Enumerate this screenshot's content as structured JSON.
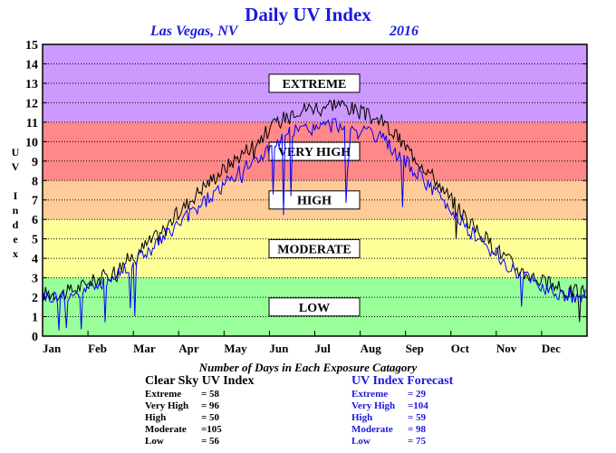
{
  "title": "Daily UV Index",
  "location": "Las Vegas, NV",
  "year": "2016",
  "chart_data": {
    "type": "line",
    "ylabel": "UV Index",
    "ylim": [
      0,
      15
    ],
    "yticks": [
      "0",
      "1",
      "2",
      "3",
      "4",
      "5",
      "6",
      "7",
      "8",
      "9",
      "10",
      "11",
      "12",
      "13",
      "14",
      "15"
    ],
    "x_labels": [
      "Jan",
      "Feb",
      "Mar",
      "Apr",
      "May",
      "Jun",
      "Jul",
      "Aug",
      "Sep",
      "Oct",
      "Nov",
      "Dec"
    ],
    "grid": true,
    "bands": [
      {
        "label": "LOW",
        "from": 0,
        "to": 3,
        "color": "#99ff99"
      },
      {
        "label": "MODERATE",
        "from": 3,
        "to": 6,
        "color": "#ffff99"
      },
      {
        "label": "HIGH",
        "from": 6,
        "to": 8,
        "color": "#ffcc99"
      },
      {
        "label": "VERY HIGH",
        "from": 8,
        "to": 11,
        "color": "#ff8888"
      },
      {
        "label": "EXTREME",
        "from": 11,
        "to": 15,
        "color": "#cc99ff"
      }
    ],
    "series": [
      {
        "color": "#000000",
        "months": [
          "Jan",
          "Feb",
          "Mar",
          "Apr",
          "May",
          "Jun",
          "Jul",
          "Aug",
          "Sep",
          "Oct",
          "Nov",
          "Dec"
        ],
        "values": [
          2.2,
          3.2,
          5.1,
          7.6,
          9.6,
          11.6,
          12.0,
          11.0,
          8.5,
          5.6,
          3.4,
          2.3
        ]
      },
      {
        "color": "#0000ff",
        "months": [
          "Jan",
          "Feb",
          "Mar",
          "Apr",
          "May",
          "Jun",
          "Jul",
          "Aug",
          "Sep",
          "Oct",
          "Nov",
          "Dec"
        ],
        "values": [
          2.0,
          2.9,
          4.7,
          6.8,
          8.7,
          10.5,
          10.9,
          10.1,
          7.8,
          5.2,
          3.1,
          2.1
        ]
      }
    ]
  },
  "stats": {
    "title": "Number of Days in Each Exposure Catagory",
    "clear_sky": {
      "title": "Clear Sky UV Index",
      "rows": [
        {
          "label": "Extreme",
          "value": "= 58"
        },
        {
          "label": "Very High",
          "value": "= 96"
        },
        {
          "label": "High",
          "value": "= 50"
        },
        {
          "label": "Moderate",
          "value": "=105"
        },
        {
          "label": "Low",
          "value": "= 56"
        }
      ]
    },
    "forecast": {
      "title": "UV Index Forecast",
      "rows": [
        {
          "label": "Extreme",
          "value": "= 29"
        },
        {
          "label": "Very High",
          "value": "=104"
        },
        {
          "label": "High",
          "value": "= 59"
        },
        {
          "label": "Moderate",
          "value": "= 98"
        },
        {
          "label": "Low",
          "value": "= 75"
        }
      ]
    }
  }
}
